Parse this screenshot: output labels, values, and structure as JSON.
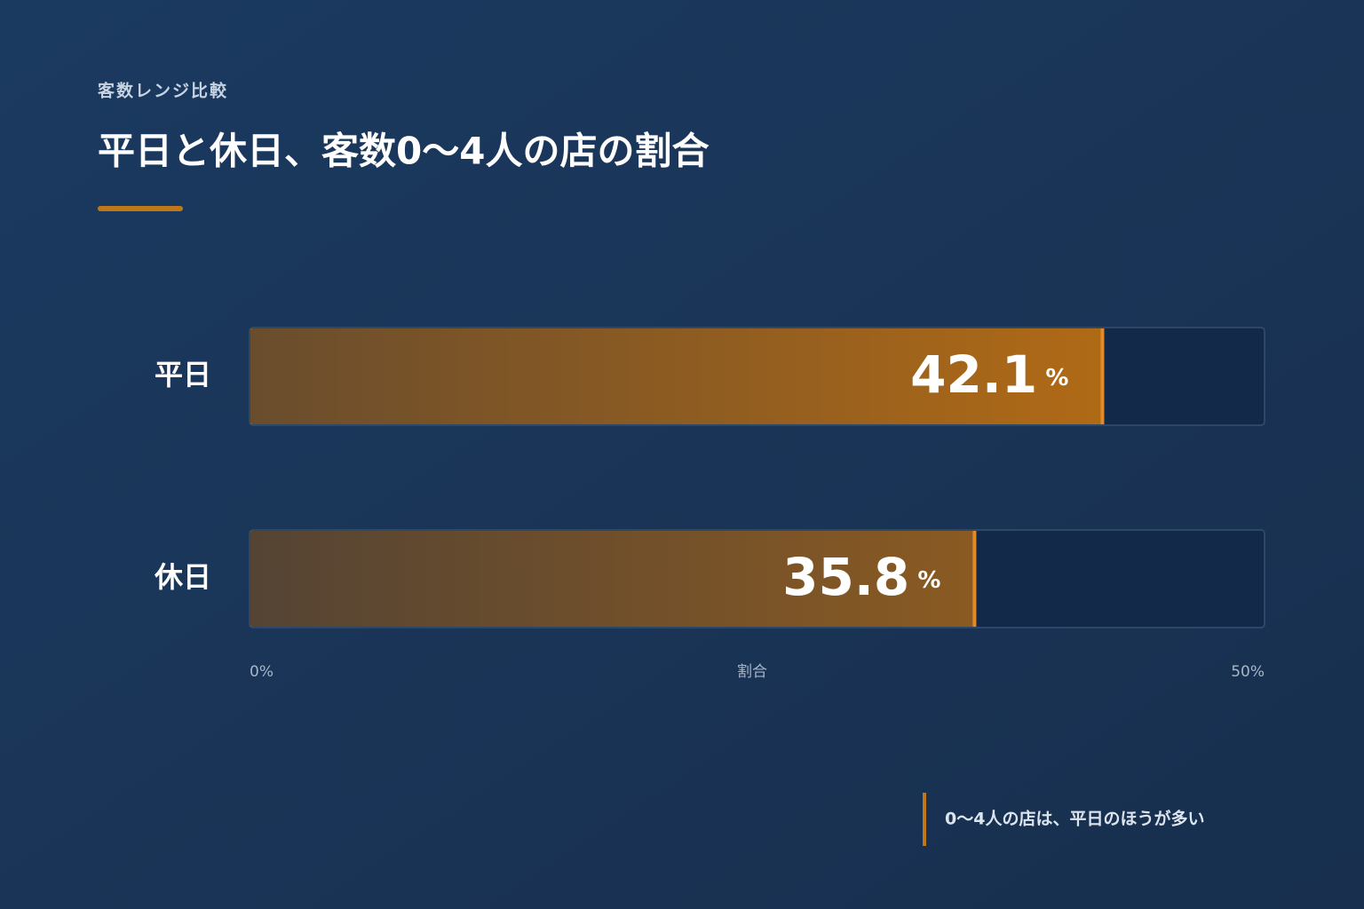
{
  "chart_data": {
    "type": "bar",
    "orientation": "horizontal",
    "subtitle": "客数レンジ比較",
    "title": "平日と休日、客数0〜4人の店の割合",
    "categories": [
      "平日",
      "休日"
    ],
    "values": [
      42.1,
      35.8
    ],
    "value_labels": [
      "42.1 %",
      "35.8 %"
    ],
    "colors": [
      "#b06a16",
      "#8a5a22"
    ],
    "xlabel": "割合",
    "xlim": [
      0,
      50
    ],
    "xticks": [
      {
        "value": 0,
        "label": "0%"
      },
      {
        "value": 50,
        "label": "50%"
      }
    ],
    "annotation": "0〜4人の店は、平日のほうが多い"
  }
}
